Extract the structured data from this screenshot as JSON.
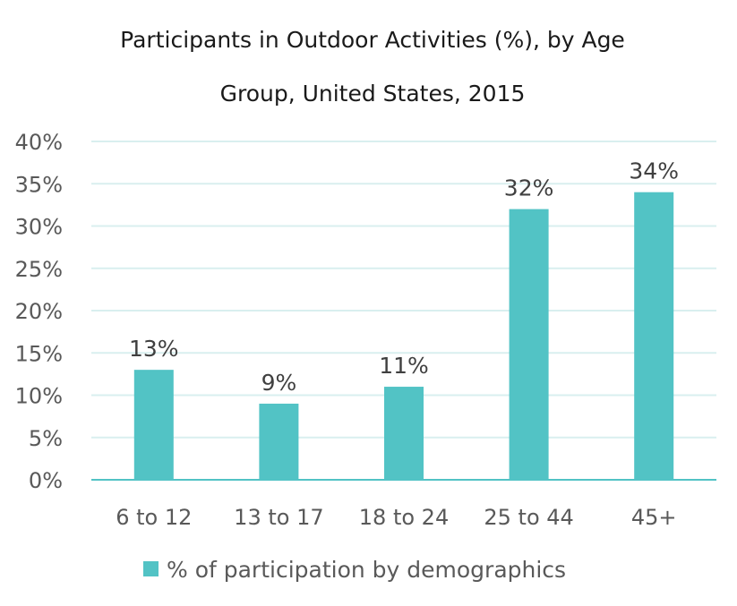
{
  "chart_data": {
    "type": "bar",
    "title_lines": [
      "Participants in Outdoor Activities (%), by Age",
      "Group, United States, 2015"
    ],
    "categories": [
      "6 to 12",
      "13 to 17",
      "18 to 24",
      "25 to 44",
      "45+"
    ],
    "series": [
      {
        "name": "% of participation by demographics",
        "values": [
          13,
          9,
          11,
          32,
          34
        ],
        "value_labels": [
          "13%",
          "9%",
          "11%",
          "32%",
          "34%"
        ],
        "color": "#52c3c5"
      }
    ],
    "y_ticks": [
      0,
      5,
      10,
      15,
      20,
      25,
      30,
      35,
      40
    ],
    "y_tick_labels": [
      "0%",
      "5%",
      "10%",
      "15%",
      "20%",
      "25%",
      "30%",
      "35%",
      "40%"
    ],
    "ylim": [
      0,
      40
    ],
    "grid": true,
    "legend_position": "bottom",
    "xlabel": "",
    "ylabel": ""
  },
  "colors": {
    "bar": "#52c3c5",
    "grid": "#d9efef",
    "axis": "#52c3c5"
  }
}
